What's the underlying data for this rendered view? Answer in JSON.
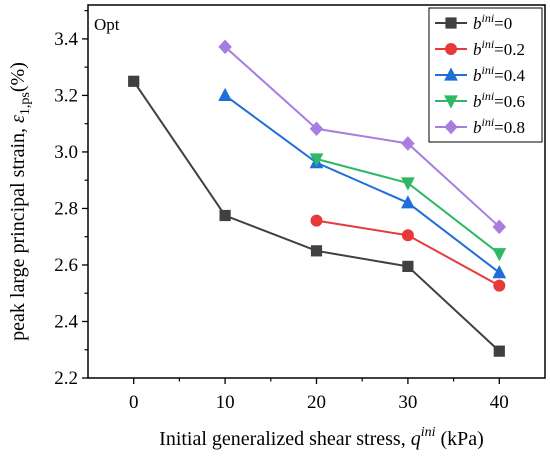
{
  "chart_data": {
    "type": "line",
    "panel_label": "Opt",
    "x": [
      0,
      10,
      20,
      30,
      40
    ],
    "x_ticks": [
      "0",
      "10",
      "20",
      "30",
      "40"
    ],
    "y_ticks": [
      "2.2",
      "2.4",
      "2.6",
      "2.8",
      "3.0",
      "3.2",
      "3.4"
    ],
    "xlim": [
      -5,
      45
    ],
    "ylim": [
      2.2,
      3.52
    ],
    "xlabel": {
      "prefix": "Initial generalized shear stress,",
      "symbol": "q",
      "sup": "ini",
      "unit": "(kPa)"
    },
    "ylabel": {
      "prefix": "peak large principal strain,",
      "symbol": "ε",
      "sub": "1,ps",
      "unit": "(%)"
    },
    "legend_position": "top-right",
    "series": [
      {
        "name": "=0",
        "legend_base": "b",
        "legend_sup": "ini",
        "color": "#404040",
        "marker": "square",
        "values": [
          3.25,
          2.775,
          2.65,
          2.595,
          2.295
        ]
      },
      {
        "name": "=0.2",
        "legend_base": "b",
        "legend_sup": "ini",
        "color": "#e8393a",
        "marker": "circle",
        "values": [
          null,
          null,
          2.757,
          2.705,
          2.527
        ]
      },
      {
        "name": "=0.4",
        "legend_base": "b",
        "legend_sup": "ini",
        "color": "#1e6fd9",
        "marker": "triangle-up",
        "values": [
          null,
          3.2,
          2.962,
          2.82,
          2.573
        ]
      },
      {
        "name": "=0.6",
        "legend_base": "b",
        "legend_sup": "ini",
        "color": "#2eb865",
        "marker": "triangle-down",
        "values": [
          null,
          null,
          2.975,
          2.89,
          2.64
        ]
      },
      {
        "name": "=0.8",
        "legend_base": "b",
        "legend_sup": "ini",
        "color": "#a77de0",
        "marker": "diamond",
        "values": [
          null,
          3.372,
          3.082,
          3.03,
          2.735
        ]
      }
    ]
  }
}
